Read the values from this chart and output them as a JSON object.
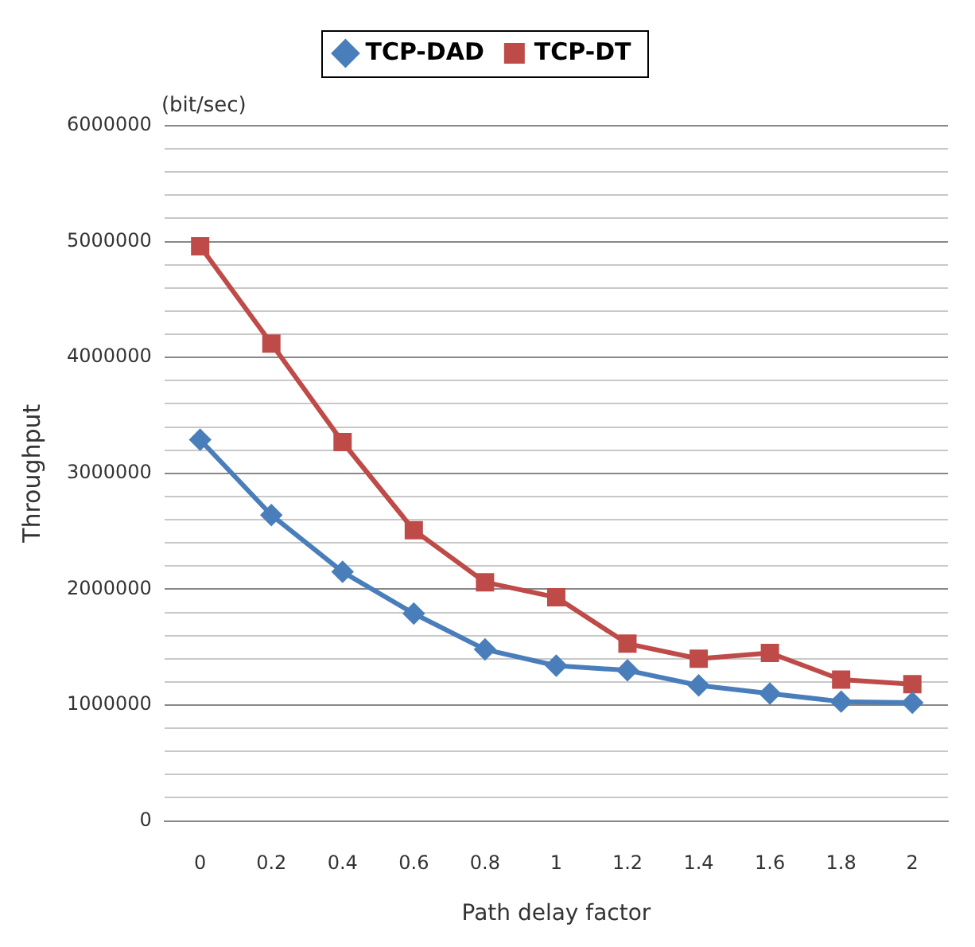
{
  "chart_data": {
    "type": "line",
    "xlabel": "Path delay factor",
    "ylabel": "Throughput",
    "annotations": [
      "(bit/sec)"
    ],
    "categories": [
      "0",
      "0.2",
      "0.4",
      "0.6",
      "0.8",
      "1",
      "1.2",
      "1.4",
      "1.6",
      "1.8",
      "2"
    ],
    "series": [
      {
        "name": "TCP-DAD",
        "color": "#4a7ebb",
        "marker": "diamond",
        "values": [
          3290000,
          2640000,
          2150000,
          1790000,
          1480000,
          1340000,
          1300000,
          1170000,
          1100000,
          1030000,
          1020000
        ]
      },
      {
        "name": "TCP-DT",
        "color": "#be4b48",
        "marker": "square",
        "values": [
          4960000,
          4120000,
          3270000,
          2510000,
          2060000,
          1930000,
          1530000,
          1400000,
          1450000,
          1220000,
          1180000
        ]
      }
    ],
    "ylim": [
      0,
      6000000
    ],
    "yticks": [
      0,
      {
        "value": 200000,
        "label": null
      },
      {
        "value": 400000,
        "label": null
      },
      {
        "value": 600000,
        "label": null
      },
      {
        "value": 800000,
        "label": null
      },
      1000000,
      {
        "value": 1200000,
        "label": null
      },
      {
        "value": 1400000,
        "label": null
      },
      {
        "value": 1600000,
        "label": null
      },
      {
        "value": 1800000,
        "label": null
      },
      2000000,
      {
        "value": 2200000,
        "label": null
      },
      {
        "value": 2400000,
        "label": null
      },
      {
        "value": 2600000,
        "label": null
      },
      {
        "value": 2800000,
        "label": null
      },
      3000000,
      {
        "value": 3200000,
        "label": null
      },
      {
        "value": 3400000,
        "label": null
      },
      {
        "value": 3600000,
        "label": null
      },
      {
        "value": 3800000,
        "label": null
      },
      4000000,
      {
        "value": 4200000,
        "label": null
      },
      {
        "value": 4400000,
        "label": null
      },
      {
        "value": 4600000,
        "label": null
      },
      {
        "value": 4800000,
        "label": null
      },
      5000000,
      {
        "value": 5200000,
        "label": null
      },
      {
        "value": 5400000,
        "label": null
      },
      {
        "value": 5600000,
        "label": null
      },
      {
        "value": 5800000,
        "label": null
      },
      6000000
    ],
    "grid": "y",
    "legend": "top",
    "line_style": "solid"
  }
}
